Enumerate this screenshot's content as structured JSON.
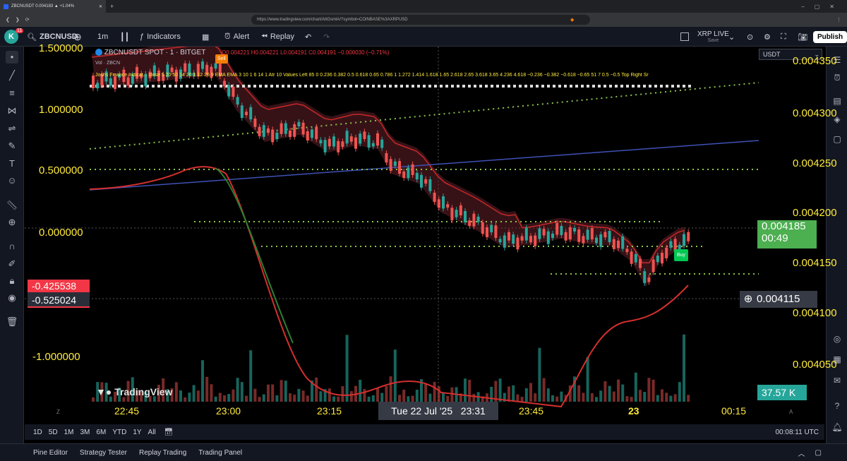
{
  "browser": {
    "tab_title": "ZBCNUSDT 0.004183 ▲ +1.04%",
    "url": "https://www.tradingview.com/chart/AttGsmlA/?symbol=COINBASE%3AXRPUSD"
  },
  "toolbar": {
    "avatar": "K",
    "notif": "11",
    "symbol": "ZBCNUSD",
    "interval": "1m",
    "indicators": "Indicators",
    "alert": "Alert",
    "replay": "Replay",
    "layout_name": "XRP LIVE",
    "layout_status": "Save",
    "publish": "Publish"
  },
  "legend": {
    "title": "ZBCNUSDT SPOT · 1 · BITGET",
    "ohlc": "O0.004221 H0.004221 L0.004191 C0.004191 −0.000030 (−0.71%)",
    "vol": "Vol · ZBCN",
    "indicator": "Joshs Finance Indicat... close 5 20 50 14 20 1 12 26 9 EMA EMA 3 10 1 6 14 1 Atr 10 Values Left 85 0 0.236 0.382 0.5 0.618 0.65 0.786 1 1.272 1.414 1.618 1.65 2.618 2.65 3.618 3.65 4.236 4.618 −0.236 −0.382 −0.618 −0.65 51 7 0.5 −0.5 Top Right Sr"
  },
  "left_axis": {
    "labels": [
      "1.500000",
      "1.000000",
      "0.500000",
      "0.000000",
      "-1.000000"
    ],
    "tag1": "-0.425538",
    "tag2": "-0.525024"
  },
  "right_axis": {
    "currency": "USDT",
    "labels": [
      "0.004350",
      "0.004300",
      "0.004250",
      "0.004200",
      "0.004150",
      "0.004100",
      "0.004050"
    ],
    "price": "0.004185",
    "countdown": "00:49",
    "cursor": "0.004115",
    "volume": "37.57 K"
  },
  "time_axis": {
    "labels": [
      "22:45",
      "23:00",
      "23:15",
      "23:45",
      "23",
      "00:15"
    ],
    "crosshair": "Tue 22 Jul '25   23:31"
  },
  "markers": {
    "sell": "Sell",
    "buy": "Buy"
  },
  "watermark": "TradingView",
  "bottom": {
    "ranges": [
      "1D",
      "5D",
      "1M",
      "3M",
      "6M",
      "YTD",
      "1Y",
      "All"
    ],
    "clock": "00:08:11 UTC"
  },
  "panels": [
    "Pine Editor",
    "Strategy Tester",
    "Replay Trading",
    "Trading Panel"
  ],
  "colors": {
    "up": "#26a69a",
    "down": "#ef5350",
    "axis_text": "#ffeb3b",
    "price_tag": "#4caf50"
  }
}
